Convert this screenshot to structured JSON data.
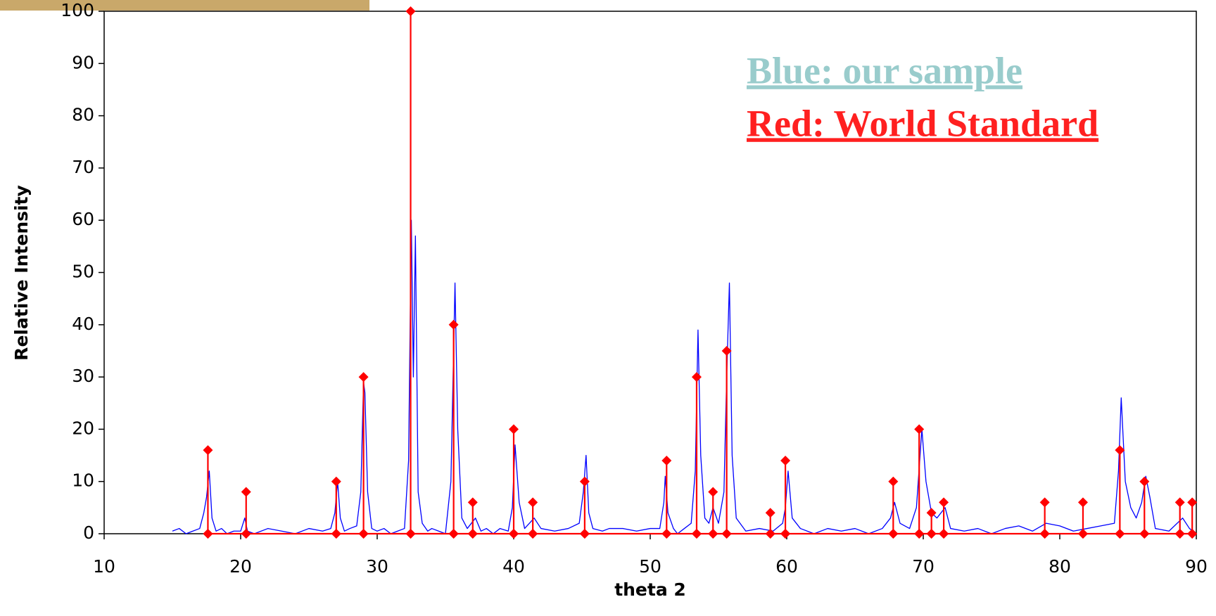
{
  "chart_data": {
    "type": "line",
    "xlabel": "theta 2",
    "ylabel": "Relative Intensity",
    "xlim": [
      10,
      90
    ],
    "xticks": [
      10,
      20,
      30,
      40,
      50,
      60,
      70,
      80,
      90
    ],
    "ylim": [
      0,
      100
    ],
    "yticks": [
      0,
      10,
      20,
      30,
      40,
      50,
      60,
      70,
      80,
      90,
      100
    ],
    "grid": false,
    "series": [
      {
        "name": "Blue: our sample",
        "color": "#0000ff",
        "legend_color": "#99cccc",
        "markers": false,
        "x": [
          15,
          15.5,
          16,
          16.5,
          17,
          17.3,
          17.5,
          17.7,
          17.9,
          18.2,
          18.6,
          19,
          19.5,
          20,
          20.3,
          20.5,
          21,
          22,
          23,
          24,
          25,
          26,
          26.6,
          26.9,
          27.1,
          27.3,
          27.6,
          28,
          28.5,
          28.8,
          29.0,
          29.1,
          29.3,
          29.6,
          30,
          30.5,
          31,
          31.5,
          32,
          32.3,
          32.5,
          32.65,
          32.8,
          33,
          33.3,
          33.7,
          34,
          34.5,
          35,
          35.4,
          35.7,
          35.9,
          36.2,
          36.6,
          37.2,
          37.6,
          38,
          38.5,
          39,
          39.6,
          39.9,
          40.1,
          40.4,
          40.8,
          41.5,
          42,
          43,
          44,
          44.8,
          45.1,
          45.3,
          45.5,
          45.8,
          46.5,
          47,
          48,
          49,
          50,
          50.7,
          51.0,
          51.1,
          51.3,
          51.7,
          52,
          52.5,
          53,
          53.3,
          53.5,
          53.7,
          54,
          54.3,
          54.6,
          55,
          55.4,
          55.6,
          55.8,
          56,
          56.3,
          57,
          58,
          59,
          59.7,
          59.9,
          60.1,
          60.4,
          61,
          62,
          63,
          64,
          65,
          66,
          67,
          67.6,
          67.9,
          68.3,
          69,
          69.5,
          69.9,
          70.2,
          70.6,
          71,
          71.6,
          72,
          73,
          74,
          75,
          76,
          77,
          78,
          79,
          80,
          81,
          82,
          83,
          84,
          84.3,
          84.5,
          84.8,
          85.2,
          85.6,
          86,
          86.3,
          86.6,
          87,
          88,
          89,
          89.5,
          90
        ],
        "values": [
          0.5,
          1,
          0,
          0.5,
          1,
          4,
          7,
          12,
          3,
          0.5,
          1,
          0,
          0.5,
          0.5,
          3,
          0.5,
          0,
          1,
          0.5,
          0,
          1,
          0.5,
          1,
          4,
          10,
          3,
          0.5,
          1,
          1.5,
          8,
          29,
          27,
          8,
          1,
          0.5,
          1,
          0,
          0.5,
          1,
          14,
          60,
          30,
          57,
          8,
          2,
          0.5,
          1,
          0.5,
          0,
          10,
          48,
          20,
          3,
          1,
          3,
          0.5,
          1,
          0,
          1,
          0.5,
          5,
          17,
          6,
          1,
          3,
          1,
          0.5,
          1,
          2,
          8,
          15,
          4,
          1,
          0.5,
          1,
          1,
          0.5,
          1,
          1,
          6,
          11,
          4,
          1,
          0,
          1,
          2,
          12,
          39,
          15,
          3,
          2,
          5,
          2,
          8,
          30,
          48,
          15,
          3,
          0.5,
          1,
          0.5,
          2,
          5,
          12,
          3,
          1,
          0,
          1,
          0.5,
          1,
          0,
          1,
          3,
          6,
          2,
          1,
          5,
          20,
          10,
          4,
          3,
          5,
          1,
          0.5,
          1,
          0,
          1,
          1.5,
          0.5,
          2,
          1.5,
          0.5,
          1,
          1.5,
          2,
          12,
          26,
          10,
          5,
          3,
          6,
          11,
          7,
          1,
          0.5,
          3,
          1,
          0
        ]
      },
      {
        "name": "Red: World Standard",
        "color": "#ff0000",
        "legend_color": "#ff2020",
        "markers": true,
        "x": [
          17.6,
          17.6,
          17.6,
          20.4,
          20.4,
          20.4,
          27.0,
          27.0,
          27.0,
          29.0,
          29.0,
          29.0,
          32.45,
          32.45,
          32.45,
          35.6,
          35.6,
          35.6,
          37.0,
          37.0,
          37.0,
          40.0,
          40.0,
          40.0,
          41.4,
          41.4,
          41.4,
          45.2,
          45.2,
          45.2,
          51.2,
          51.2,
          51.2,
          53.4,
          53.4,
          53.4,
          54.6,
          54.6,
          54.6,
          55.6,
          55.6,
          55.6,
          58.8,
          58.8,
          58.8,
          59.9,
          59.9,
          59.9,
          67.8,
          67.8,
          67.8,
          69.7,
          69.7,
          69.7,
          70.6,
          70.6,
          70.6,
          71.5,
          71.5,
          71.5,
          78.9,
          78.9,
          78.9,
          81.7,
          81.7,
          81.7,
          84.4,
          84.4,
          84.4,
          86.2,
          86.2,
          86.2,
          88.8,
          88.8,
          88.8,
          89.7,
          89.7,
          89.7
        ],
        "values": [
          0,
          16,
          0,
          0,
          8,
          0,
          0,
          10,
          0,
          0,
          30,
          0,
          0,
          100,
          0,
          0,
          40,
          0,
          0,
          6,
          0,
          0,
          20,
          0,
          0,
          6,
          0,
          0,
          10,
          0,
          0,
          14,
          0,
          0,
          30,
          0,
          0,
          8,
          0,
          0,
          35,
          0,
          0,
          4,
          0,
          0,
          14,
          0,
          0,
          10,
          0,
          0,
          20,
          0,
          0,
          4,
          0,
          0,
          6,
          0,
          0,
          6,
          0,
          0,
          6,
          0,
          0,
          16,
          0,
          0,
          10,
          0,
          0,
          6,
          0,
          0,
          6,
          0
        ]
      }
    ]
  }
}
